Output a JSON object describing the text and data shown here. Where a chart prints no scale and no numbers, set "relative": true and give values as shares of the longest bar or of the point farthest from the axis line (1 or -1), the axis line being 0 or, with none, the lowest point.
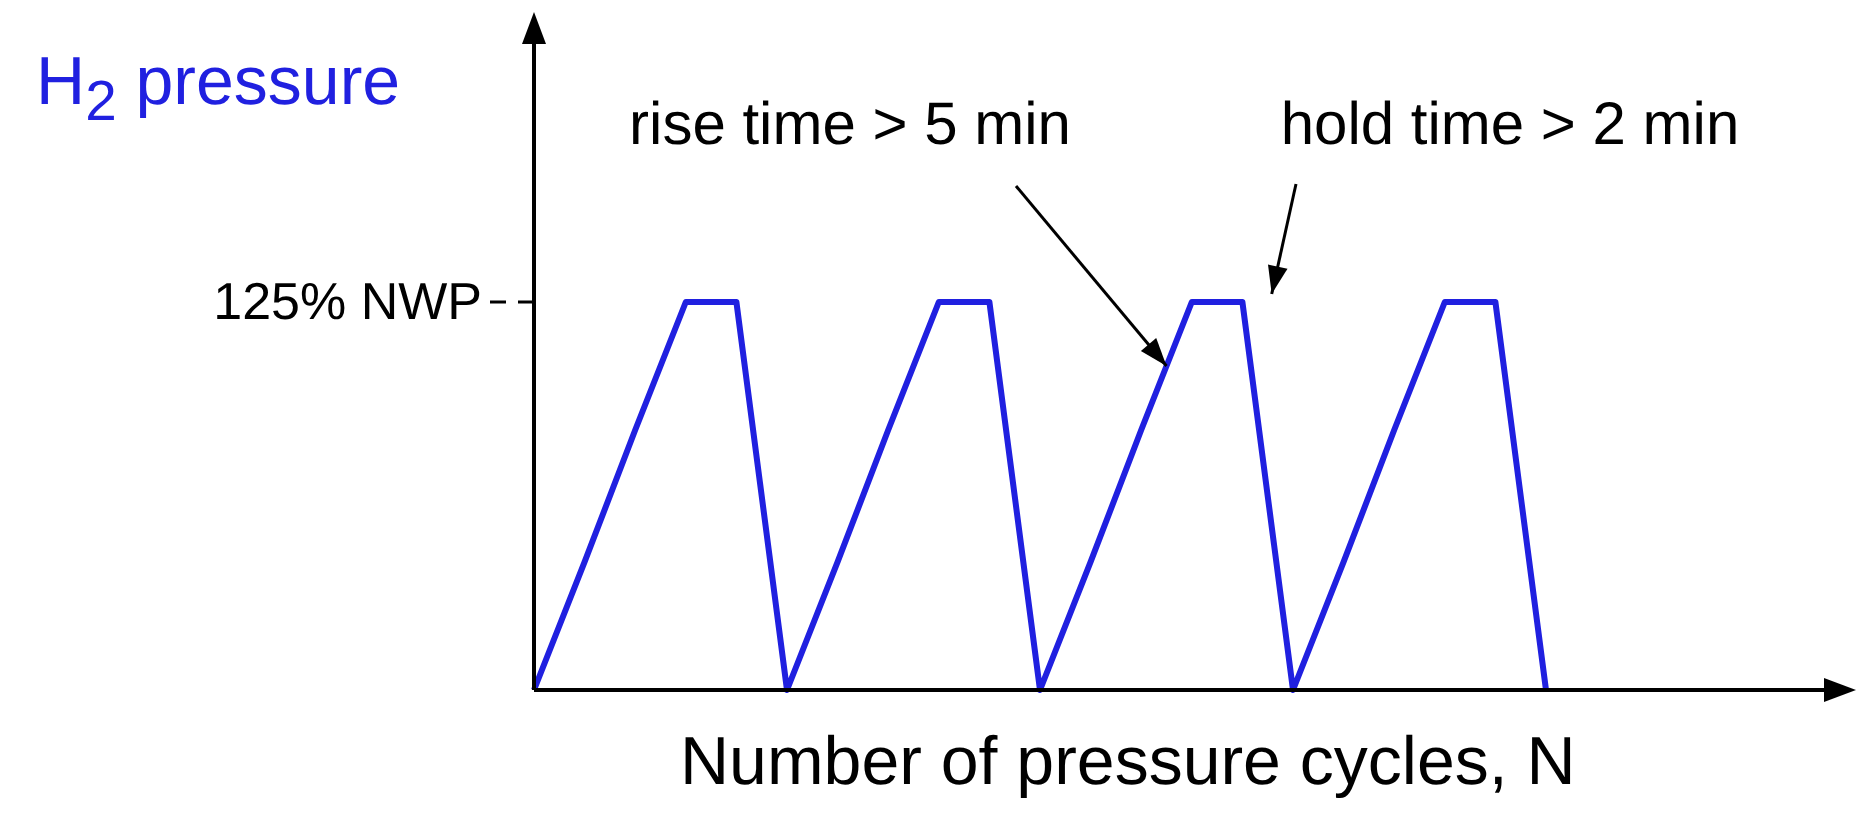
{
  "chart_data": {
    "type": "line",
    "relative": true,
    "ylabel": "H$_{2}$ pressure",
    "xlabel": "Number of pressure cycles, N",
    "categories": [
      null,
      null,
      null,
      null,
      null,
      null,
      null,
      null,
      null,
      null,
      null,
      null,
      null,
      null,
      null,
      null,
      null,
      null,
      null,
      null,
      null
    ],
    "series": [
      {
        "color": "#2020e0",
        "values": [
          0,
          0.33,
          0.67,
          1,
          1,
          0,
          0.33,
          0.67,
          1,
          1,
          0,
          0.33,
          0.67,
          1,
          1,
          0,
          0.33,
          0.67,
          1,
          1,
          0
        ]
      }
    ],
    "legend": false,
    "marker": "none",
    "line_style": "solid",
    "annotations": [
      "125% NWP",
      "rise time > 5 min",
      "hold time > 2 min"
    ]
  }
}
